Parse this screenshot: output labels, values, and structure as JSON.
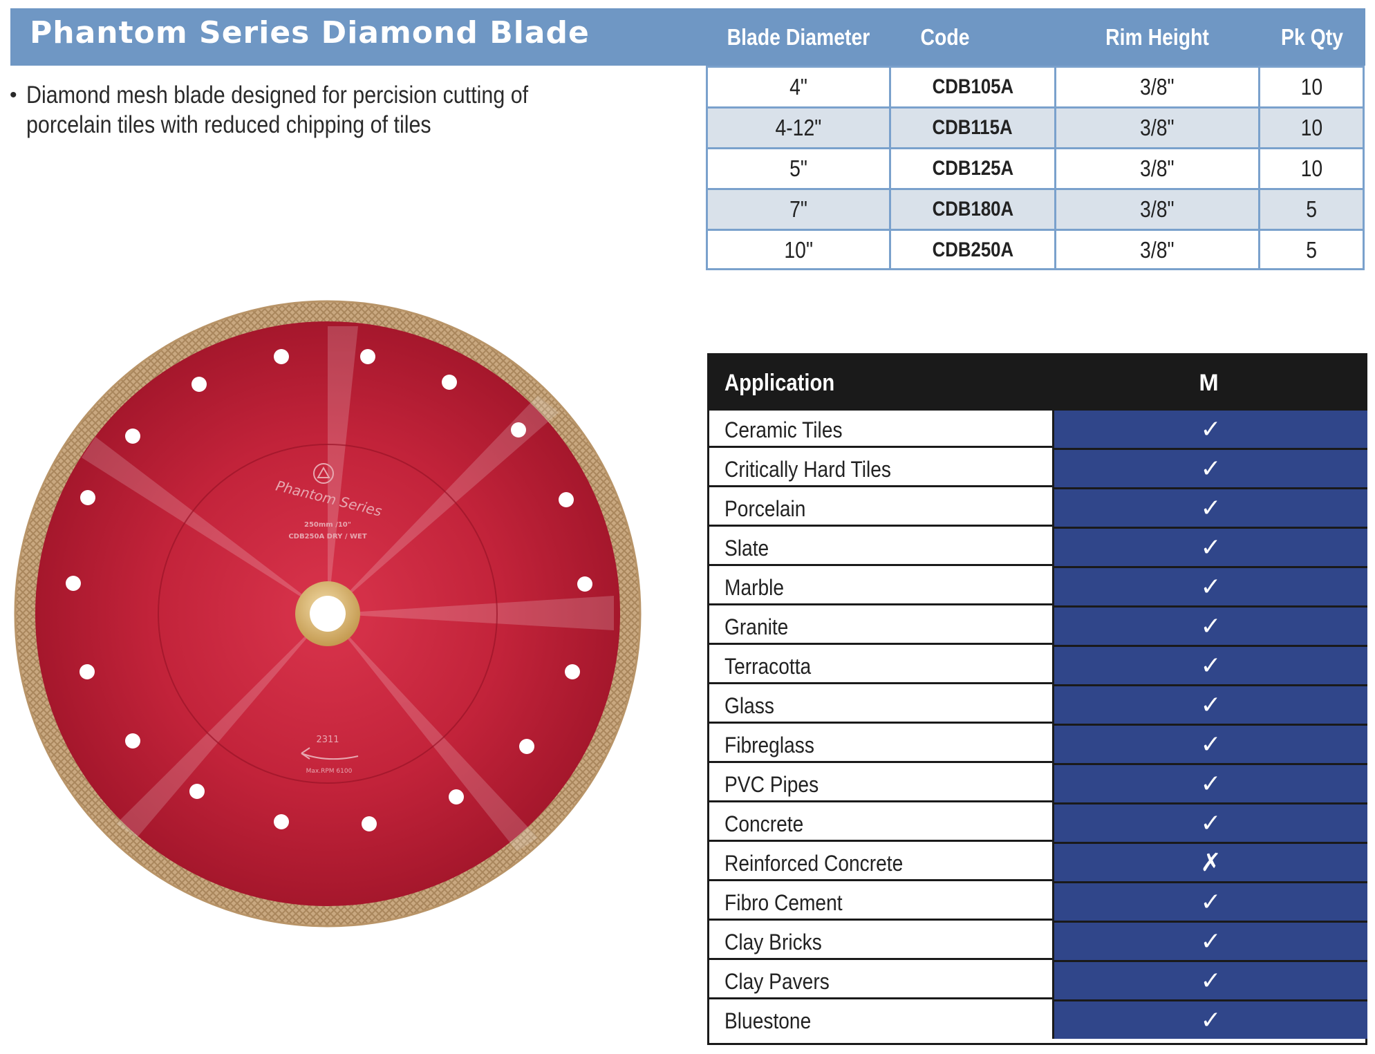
{
  "header": {
    "title": "Phantom Series Diamond Blade",
    "columns": [
      "Blade Diameter",
      "Code",
      "Rim Height",
      "Pk Qty"
    ]
  },
  "description": {
    "bullet": "•",
    "text": "Diamond mesh blade designed for percision cutting of porcelain tiles with reduced chipping of tiles"
  },
  "specs": [
    {
      "diameter": "4\"",
      "code": "CDB105A",
      "rim": "3/8\"",
      "qty": "10"
    },
    {
      "diameter": "4-12\"",
      "code": "CDB115A",
      "rim": "3/8\"",
      "qty": "10"
    },
    {
      "diameter": "5\"",
      "code": "CDB125A",
      "rim": "3/8\"",
      "qty": "10"
    },
    {
      "diameter": "7\"",
      "code": "CDB180A",
      "rim": "3/8\"",
      "qty": "5"
    },
    {
      "diameter": "10\"",
      "code": "CDB250A",
      "rim": "3/8\"",
      "qty": "5"
    }
  ],
  "blade": {
    "series_text": "Phantom Series",
    "size_text": "250mm /10\"",
    "code_text": "CDB250A DRY / WET",
    "batch_text": "2311",
    "rpm_text": "Max.RPM 6100",
    "body_color": "#c2233a",
    "rim_color": "#c9a880"
  },
  "application": {
    "header_label": "Application",
    "header_mark": "M",
    "rows": [
      {
        "label": "Ceramic Tiles",
        "mark": "✓"
      },
      {
        "label": "Critically Hard Tiles",
        "mark": "✓"
      },
      {
        "label": "Porcelain",
        "mark": "✓"
      },
      {
        "label": "Slate",
        "mark": "✓"
      },
      {
        "label": "Marble",
        "mark": "✓"
      },
      {
        "label": "Granite",
        "mark": "✓"
      },
      {
        "label": "Terracotta",
        "mark": "✓"
      },
      {
        "label": "Glass",
        "mark": "✓"
      },
      {
        "label": "Fibreglass",
        "mark": "✓"
      },
      {
        "label": "PVC Pipes",
        "mark": "✓"
      },
      {
        "label": "Concrete",
        "mark": "✓"
      },
      {
        "label": "Reinforced Concrete",
        "mark": "✗"
      },
      {
        "label": "Fibro Cement",
        "mark": "✓"
      },
      {
        "label": "Clay Bricks",
        "mark": "✓"
      },
      {
        "label": "Clay Pavers",
        "mark": "✓"
      },
      {
        "label": "Bluestone",
        "mark": "✓"
      }
    ]
  }
}
